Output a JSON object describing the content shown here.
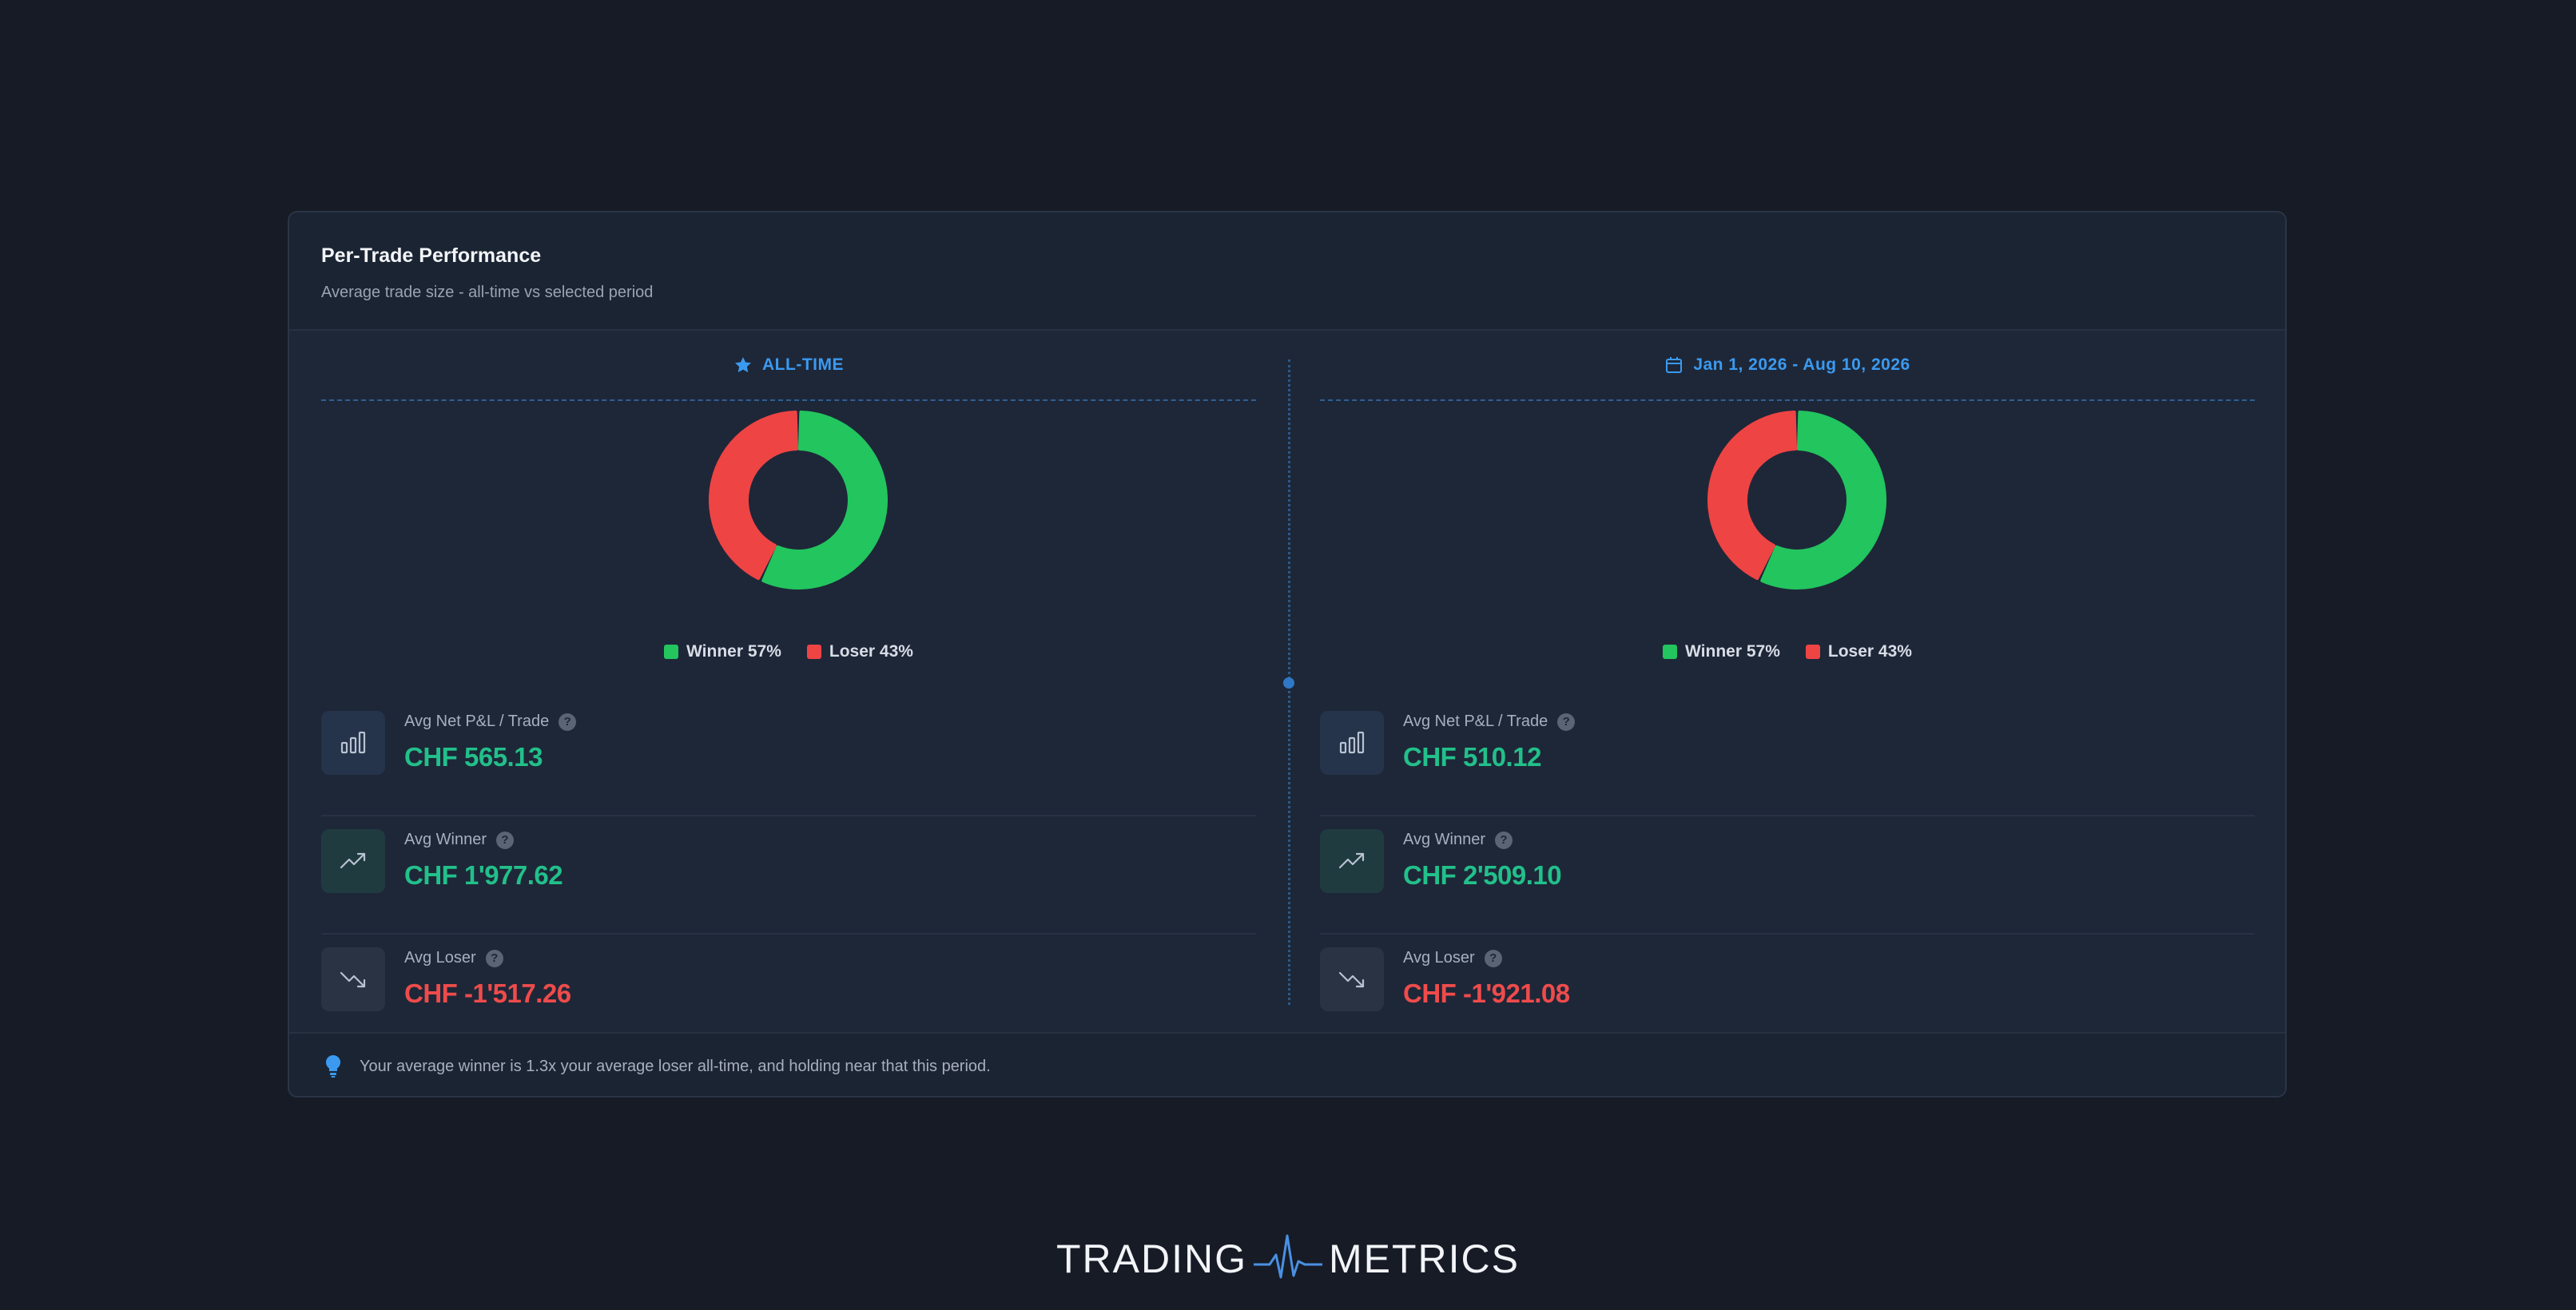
{
  "card": {
    "title": "Per-Trade Performance",
    "subtitle": "Average trade size - all-time vs selected period"
  },
  "colors": {
    "winner": "#22c55e",
    "loser": "#ef4444",
    "accent": "#3b9af0"
  },
  "panels": [
    {
      "heading": "ALL-TIME",
      "heading_icon": "star-icon",
      "chart_data": {
        "type": "pie",
        "categories": [
          "Winner",
          "Loser"
        ],
        "values": [
          57,
          43
        ]
      },
      "legend": {
        "winner": "Winner 57%",
        "loser": "Loser 43%"
      },
      "metrics": [
        {
          "label": "Avg Net P&L / Trade",
          "value": "CHF 565.13",
          "icon": "bar-chart-icon"
        },
        {
          "label": "Avg Winner",
          "value": "CHF 1'977.62",
          "icon": "trending-up-icon"
        },
        {
          "label": "Avg Loser",
          "value": "CHF -1'517.26",
          "icon": "trending-down-icon"
        }
      ]
    },
    {
      "heading": "Jan 1, 2026 - Aug 10, 2026",
      "heading_icon": "calendar-icon",
      "chart_data": {
        "type": "pie",
        "categories": [
          "Winner",
          "Loser"
        ],
        "values": [
          57,
          43
        ]
      },
      "legend": {
        "winner": "Winner 57%",
        "loser": "Loser 43%"
      },
      "metrics": [
        {
          "label": "Avg Net P&L / Trade",
          "value": "CHF 510.12",
          "icon": "bar-chart-icon"
        },
        {
          "label": "Avg Winner",
          "value": "CHF 2'509.10",
          "icon": "trending-up-icon"
        },
        {
          "label": "Avg Loser",
          "value": "CHF -1'921.08",
          "icon": "trending-down-icon"
        }
      ]
    }
  ],
  "footer": {
    "text": "Your average winner is 1.3x your average loser all-time, and holding near that this period.",
    "icon": "lightbulb-icon"
  },
  "brand": {
    "left": "TRADING",
    "right": "METRICS"
  }
}
